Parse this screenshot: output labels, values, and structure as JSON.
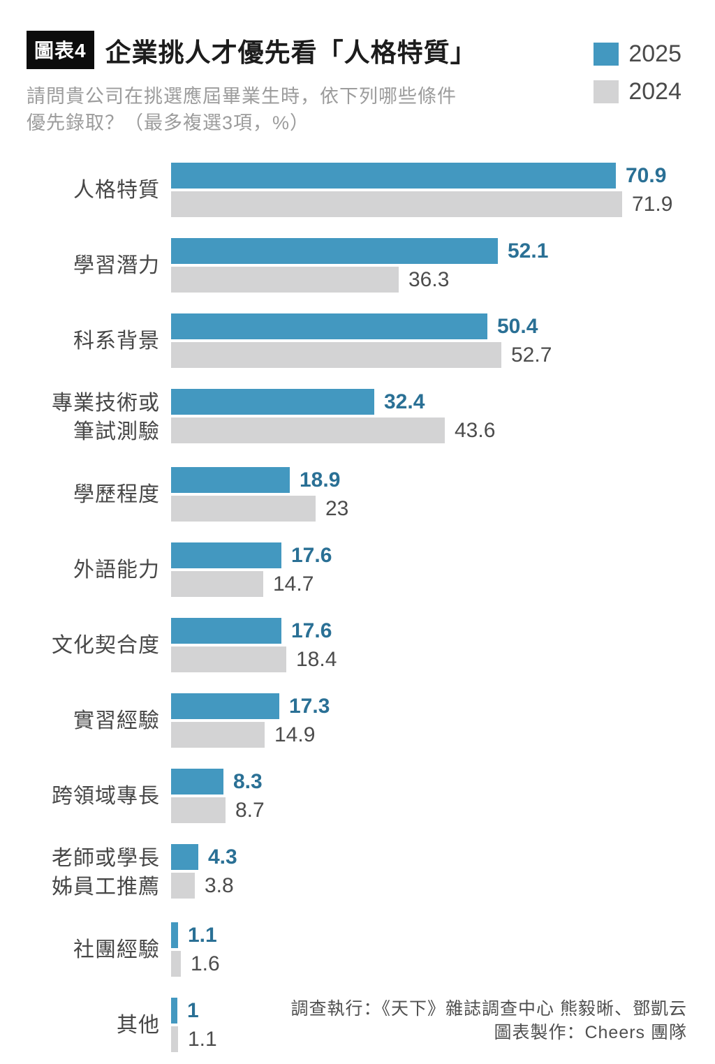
{
  "header": {
    "badge": "圖表4",
    "title": "企業挑人才優先看「人格特質」",
    "subtitle_line1": "請問貴公司在挑選應屆畢業生時，依下列哪些條件",
    "subtitle_line2": "優先錄取？（最多複選3項，%）"
  },
  "legend": {
    "items": [
      {
        "label": "2025",
        "color": "#4398c0"
      },
      {
        "label": "2024",
        "color": "#d3d3d4"
      }
    ]
  },
  "chart_data": {
    "type": "bar",
    "orientation": "horizontal",
    "title": "企業挑人才優先看「人格特質」",
    "value_unit": "%",
    "axis_visible": false,
    "xlim": [
      0,
      80
    ],
    "value_labels": true,
    "legend_position": "top-right",
    "categories": [
      [
        "人格特質"
      ],
      [
        "學習潛力"
      ],
      [
        "科系背景"
      ],
      [
        "專業技術或",
        "筆試測驗"
      ],
      [
        "學歷程度"
      ],
      [
        "外語能力"
      ],
      [
        "文化契合度"
      ],
      [
        "實習經驗"
      ],
      [
        "跨領域專長"
      ],
      [
        "老師或學長",
        "姊員工推薦"
      ],
      [
        "社團經驗"
      ],
      [
        "其他"
      ]
    ],
    "series": [
      {
        "name": "2025",
        "color": "#4398c0",
        "value_text_color": "#2a7095",
        "values": [
          70.9,
          52.1,
          50.4,
          32.4,
          18.9,
          17.6,
          17.6,
          17.3,
          8.3,
          4.3,
          1.1,
          1
        ]
      },
      {
        "name": "2024",
        "color": "#d3d3d4",
        "value_text_color": "#4c4c4c",
        "values": [
          71.9,
          36.3,
          52.7,
          43.6,
          23,
          14.7,
          18.4,
          14.9,
          8.7,
          3.8,
          1.6,
          1.1
        ]
      }
    ]
  },
  "footer": {
    "line1": "調查執行：《天下》雜誌調查中心 熊毅晰、鄧凱云",
    "line2": "圖表製作：Cheers 團隊"
  }
}
